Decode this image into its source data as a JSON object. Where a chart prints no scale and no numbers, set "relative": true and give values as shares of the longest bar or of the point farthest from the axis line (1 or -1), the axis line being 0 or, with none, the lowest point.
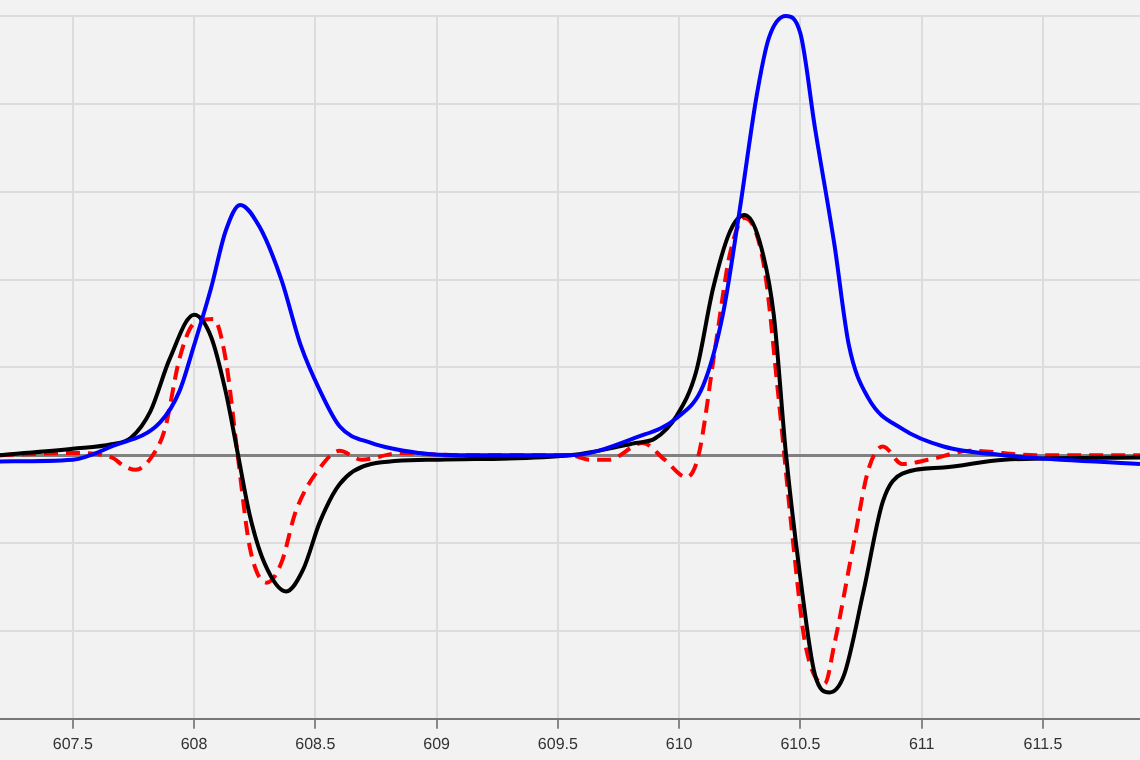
{
  "chart_data": {
    "type": "line",
    "relative": true,
    "xlim": [
      607.2,
      611.9
    ],
    "xticks": [
      607.5,
      608,
      608.5,
      609,
      609.5,
      610,
      610.5,
      611,
      611.5
    ],
    "tick_labels": "x",
    "grid": true,
    "marker": "none",
    "legend": false,
    "series": [
      {
        "color": "#0000ff",
        "line_style": "solid",
        "x": [
          607.2,
          607.5,
          607.66,
          607.86,
          607.94,
          608.0,
          608.07,
          608.13,
          608.19,
          608.27,
          608.36,
          608.44,
          608.52,
          608.6,
          608.73,
          608.93,
          609.1,
          609.43,
          609.55,
          609.82,
          609.99,
          610.1,
          610.18,
          610.25,
          610.32,
          610.37,
          610.44,
          610.5,
          610.56,
          610.64,
          610.7,
          610.78,
          610.92,
          611.09,
          611.34,
          611.9
        ],
        "values": [
          -0.014,
          -0.01,
          0.02,
          0.075,
          0.146,
          0.25,
          0.38,
          0.51,
          0.57,
          0.52,
          0.4,
          0.25,
          0.146,
          0.066,
          0.028,
          0.005,
          0,
          0,
          0,
          0.04,
          0.085,
          0.16,
          0.32,
          0.56,
          0.82,
          0.95,
          1.0,
          0.96,
          0.745,
          0.48,
          0.25,
          0.13,
          0.06,
          0.02,
          0,
          -0.02
        ]
      },
      {
        "color": "#000000",
        "line_style": "solid",
        "x": [
          607.2,
          607.5,
          607.66,
          607.74,
          607.82,
          607.9,
          608.0,
          608.07,
          608.13,
          608.18,
          608.23,
          608.29,
          608.38,
          608.45,
          608.52,
          608.6,
          608.73,
          609.01,
          609.55,
          609.82,
          609.9,
          609.99,
          610.07,
          610.14,
          610.21,
          610.27,
          610.33,
          610.39,
          610.44,
          610.5,
          610.56,
          610.62,
          610.68,
          610.76,
          610.84,
          610.92,
          611.09,
          611.34,
          611.9
        ],
        "values": [
          0,
          0.015,
          0.025,
          0.04,
          0.1,
          0.22,
          0.32,
          0.27,
          0.146,
          0.005,
          -0.137,
          -0.245,
          -0.31,
          -0.26,
          -0.15,
          -0.066,
          -0.02,
          -0.01,
          0,
          0.028,
          0.038,
          0.09,
          0.19,
          0.38,
          0.51,
          0.547,
          0.49,
          0.32,
          0.005,
          -0.28,
          -0.5,
          -0.54,
          -0.5,
          -0.31,
          -0.105,
          -0.042,
          -0.028,
          -0.01,
          -0.005
        ]
      },
      {
        "color": "#ff0000",
        "line_style": "dashed",
        "x": [
          607.2,
          607.5,
          607.66,
          607.71,
          607.76,
          607.83,
          607.88,
          607.94,
          608.0,
          608.08,
          608.13,
          608.18,
          608.23,
          608.3,
          608.36,
          608.42,
          608.52,
          608.6,
          608.69,
          608.85,
          609.1,
          609.55,
          609.63,
          609.71,
          609.85,
          609.94,
          610.03,
          610.08,
          610.15,
          610.21,
          610.27,
          610.35,
          610.41,
          610.47,
          610.52,
          610.6,
          610.64,
          610.72,
          610.78,
          610.84,
          610.92,
          611.03,
          611.2,
          611.47,
          611.9
        ],
        "values": [
          0,
          0.005,
          -0.005,
          -0.024,
          -0.033,
          0,
          0.06,
          0.22,
          0.3,
          0.31,
          0.22,
          0,
          -0.21,
          -0.29,
          -0.245,
          -0.127,
          -0.028,
          0.01,
          -0.01,
          0.005,
          0,
          0,
          -0.01,
          -0.01,
          0.028,
          -0.01,
          -0.05,
          0,
          0.25,
          0.46,
          0.54,
          0.43,
          0.13,
          -0.2,
          -0.43,
          -0.52,
          -0.43,
          -0.2,
          -0.033,
          0.02,
          -0.02,
          -0.01,
          0.01,
          0,
          0
        ]
      }
    ]
  }
}
